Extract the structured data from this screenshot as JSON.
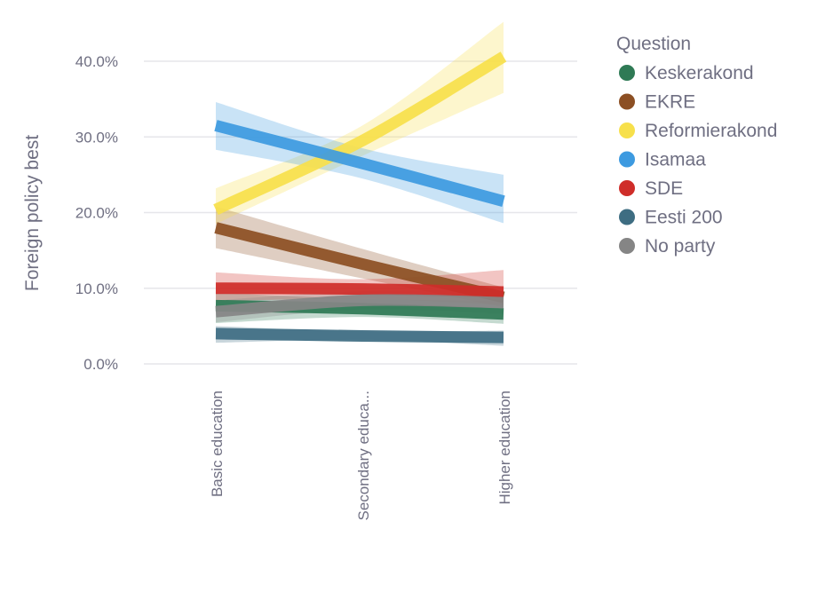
{
  "chart_data": {
    "type": "line",
    "title": "",
    "ylabel": "Foreign policy best",
    "xlabel": "",
    "categories": [
      "Basic education",
      "Secondary educa...",
      "Higher education"
    ],
    "y_ticks": [
      {
        "value": 0,
        "label": "0.0%"
      },
      {
        "value": 10,
        "label": "10.0%"
      },
      {
        "value": 20,
        "label": "20.0%"
      },
      {
        "value": 30,
        "label": "30.0%"
      },
      {
        "value": 40,
        "label": "40.0%"
      }
    ],
    "ylim": [
      0,
      40
    ],
    "grid": true,
    "legend_position": "right",
    "legend_title": "Question",
    "series": [
      {
        "name": "Keskerakond",
        "color": "#2f7a55",
        "values": [
          7.7,
          7.3,
          6.6
        ],
        "lower": [
          5.4,
          6.2,
          5.3
        ],
        "upper": [
          9.4,
          8.6,
          8.3
        ]
      },
      {
        "name": "EKRE",
        "color": "#8c4f23",
        "values": [
          18.0,
          13.2,
          8.8
        ],
        "lower": [
          15.3,
          11.3,
          7.5
        ],
        "upper": [
          20.8,
          15.2,
          10.1
        ]
      },
      {
        "name": "Reformierakond",
        "color": "#f7e04b",
        "values": [
          20.4,
          29.5,
          40.6
        ],
        "lower": [
          18.5,
          27.5,
          35.8
        ],
        "upper": [
          23.2,
          31.5,
          45.2
        ]
      },
      {
        "name": "Isamaa",
        "color": "#3d9ae0",
        "values": [
          31.5,
          26.5,
          21.5
        ],
        "lower": [
          28.3,
          24.5,
          18.6
        ],
        "upper": [
          34.6,
          28.5,
          25.0
        ]
      },
      {
        "name": "SDE",
        "color": "#cf2d29",
        "values": [
          10.0,
          9.9,
          9.5
        ],
        "lower": [
          8.3,
          8.6,
          7.8
        ],
        "upper": [
          12.1,
          11.2,
          12.4
        ]
      },
      {
        "name": "Eesti 200",
        "color": "#3e6d82",
        "values": [
          4.0,
          3.7,
          3.5
        ],
        "lower": [
          2.8,
          3.2,
          2.4
        ],
        "upper": [
          5.0,
          4.3,
          4.4
        ]
      },
      {
        "name": "No party",
        "color": "#858585",
        "values": [
          6.9,
          8.4,
          8.1
        ],
        "lower": [
          5.5,
          7.2,
          6.6
        ],
        "upper": [
          8.4,
          9.6,
          9.7
        ]
      }
    ]
  }
}
